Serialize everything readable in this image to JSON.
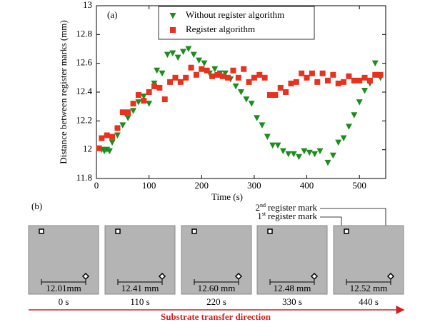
{
  "chart_data": {
    "type": "scatter",
    "annotation": "(a)",
    "x_label": "Time (s)",
    "y_label": "Distance between register marks (mm)",
    "xlim": [
      0,
      550
    ],
    "xticks": [
      0,
      100,
      200,
      300,
      400,
      500
    ],
    "ylim": [
      11.8,
      13
    ],
    "yticks": [
      11.8,
      12,
      12.2,
      12.4,
      12.6,
      12.8,
      13
    ],
    "legend": "upper center",
    "series": [
      {
        "name": "Without register algorithm",
        "color": "#1e8c1e",
        "marker": "triangle-down",
        "x": [
          10,
          15,
          20,
          25,
          30,
          40,
          50,
          55,
          60,
          70,
          80,
          90,
          100,
          110,
          115,
          125,
          135,
          145,
          155,
          165,
          175,
          185,
          195,
          205,
          215,
          225,
          235,
          245,
          255,
          265,
          275,
          285,
          295,
          305,
          315,
          325,
          335,
          345,
          355,
          365,
          375,
          385,
          395,
          405,
          415,
          425,
          440,
          450,
          460,
          470,
          480,
          490,
          500,
          510,
          520,
          530,
          540
        ],
        "values": [
          12.0,
          11.99,
          12.0,
          11.99,
          12.05,
          12.1,
          12.17,
          12.25,
          12.22,
          12.27,
          12.33,
          12.37,
          12.32,
          12.46,
          12.55,
          12.53,
          12.66,
          12.67,
          12.64,
          12.68,
          12.7,
          12.66,
          12.62,
          12.6,
          12.53,
          12.56,
          12.53,
          12.53,
          12.49,
          12.44,
          12.4,
          12.35,
          12.32,
          12.22,
          12.17,
          12.09,
          12.03,
          12.03,
          11.99,
          11.97,
          11.97,
          11.95,
          11.99,
          11.98,
          11.97,
          11.99,
          11.91,
          11.96,
          12.05,
          12.08,
          12.16,
          12.24,
          12.33,
          12.41,
          12.46,
          12.6,
          12.5
        ]
      },
      {
        "name": "Register algorithm",
        "color": "#e8321e",
        "marker": "square",
        "x": [
          5,
          10,
          20,
          30,
          40,
          50,
          60,
          70,
          80,
          90,
          100,
          110,
          120,
          130,
          140,
          150,
          160,
          170,
          180,
          190,
          200,
          210,
          220,
          230,
          240,
          250,
          260,
          270,
          280,
          290,
          300,
          310,
          320,
          330,
          340,
          350,
          360,
          370,
          380,
          390,
          400,
          410,
          420,
          430,
          440,
          450,
          460,
          470,
          480,
          490,
          500,
          510,
          520,
          530,
          540
        ],
        "values": [
          12.01,
          12.08,
          12.1,
          12.09,
          12.15,
          12.26,
          12.26,
          12.32,
          12.38,
          12.34,
          12.4,
          12.44,
          12.43,
          12.35,
          12.47,
          12.5,
          12.47,
          12.5,
          12.57,
          12.52,
          12.56,
          12.55,
          12.51,
          12.52,
          12.51,
          12.5,
          12.55,
          12.5,
          12.56,
          12.47,
          12.5,
          12.52,
          12.5,
          12.38,
          12.38,
          12.43,
          12.4,
          12.46,
          12.47,
          12.53,
          12.5,
          12.53,
          12.47,
          12.53,
          12.48,
          12.52,
          12.46,
          12.47,
          12.51,
          12.48,
          12.48,
          12.5,
          12.48,
          12.52,
          12.52
        ]
      }
    ]
  },
  "panel_b": {
    "label": "(b)",
    "second_mark": {
      "ordinal": "2",
      "suffix": "nd",
      "text": "register mark"
    },
    "first_mark": {
      "ordinal": "1",
      "suffix": "st",
      "text": "register mark"
    },
    "frames": [
      {
        "distance": "12.01mm",
        "time": "0 s"
      },
      {
        "distance": "12.41 mm",
        "time": "110 s"
      },
      {
        "distance": "12.60 mm",
        "time": "220 s"
      },
      {
        "distance": "12.48 mm",
        "time": "330 s"
      },
      {
        "distance": "12.52 mm",
        "time": "440 s"
      }
    ],
    "direction": "Substrate transfer direction"
  }
}
